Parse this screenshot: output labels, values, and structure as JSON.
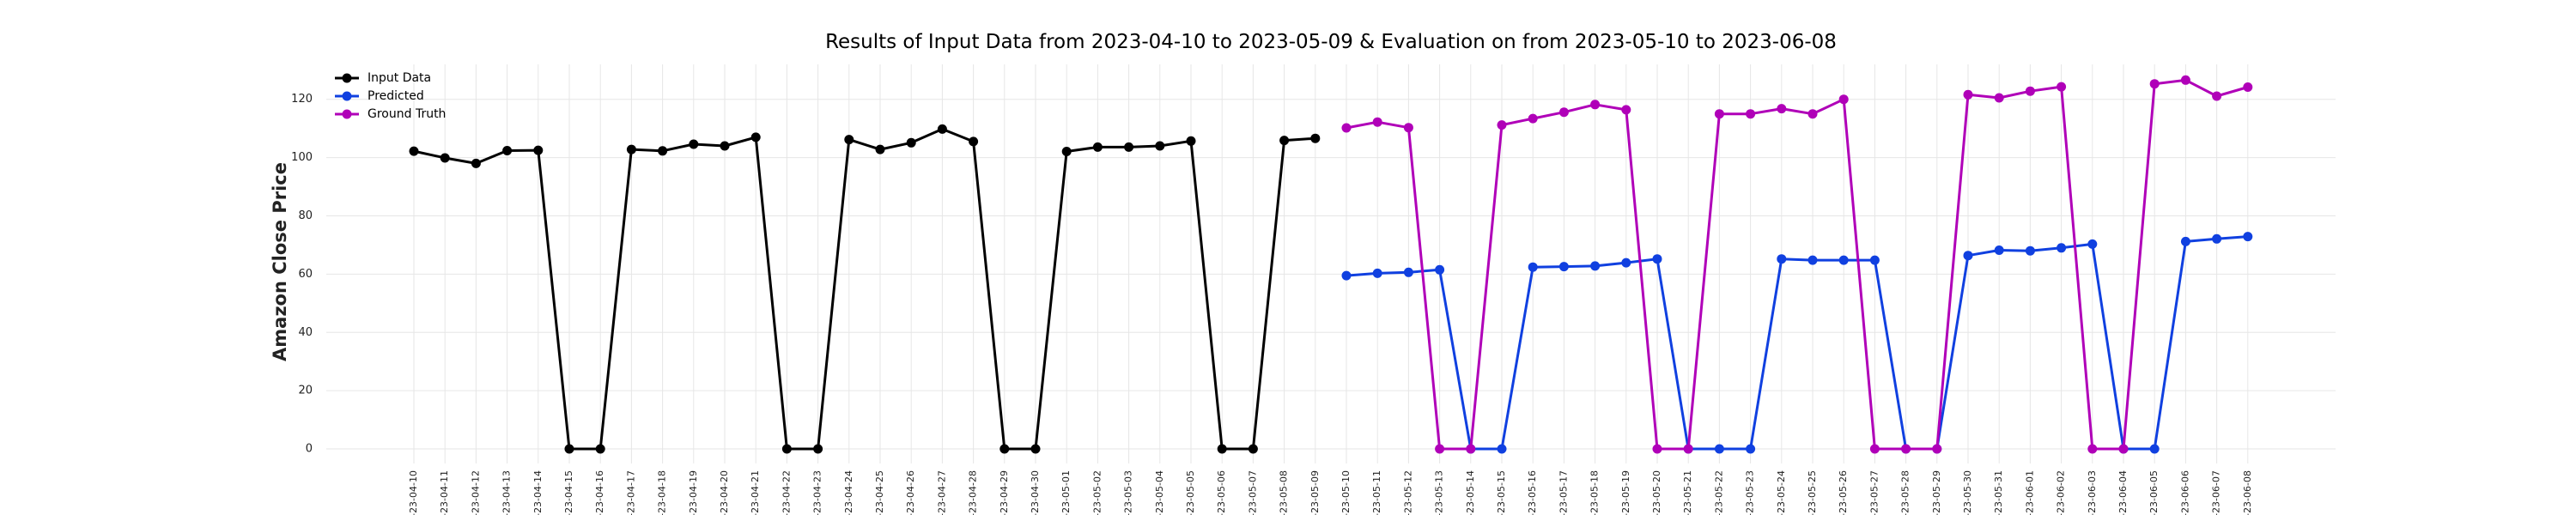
{
  "chart_data": {
    "type": "line",
    "title": "Results of Input Data from 2023-04-10 to 2023-05-09 & Evaluation on from 2023-05-10 to 2023-06-08",
    "xlabel": "",
    "ylabel": "Amazon Close Price",
    "ylim": [
      -5,
      132
    ],
    "yticks": [
      0,
      20,
      40,
      60,
      80,
      100,
      120
    ],
    "grid": true,
    "legend_position": "top-left",
    "x": [
      "2023-04-10",
      "2023-04-11",
      "2023-04-12",
      "2023-04-13",
      "2023-04-14",
      "2023-04-15",
      "2023-04-16",
      "2023-04-17",
      "2023-04-18",
      "2023-04-19",
      "2023-04-20",
      "2023-04-21",
      "2023-04-22",
      "2023-04-23",
      "2023-04-24",
      "2023-04-25",
      "2023-04-26",
      "2023-04-27",
      "2023-04-28",
      "2023-04-29",
      "2023-04-30",
      "2023-05-01",
      "2023-05-02",
      "2023-05-03",
      "2023-05-04",
      "2023-05-05",
      "2023-05-06",
      "2023-05-07",
      "2023-05-08",
      "2023-05-09",
      "2023-05-10",
      "2023-05-11",
      "2023-05-12",
      "2023-05-13",
      "2023-05-14",
      "2023-05-15",
      "2023-05-16",
      "2023-05-17",
      "2023-05-18",
      "2023-05-19",
      "2023-05-20",
      "2023-05-21",
      "2023-05-22",
      "2023-05-23",
      "2023-05-24",
      "2023-05-25",
      "2023-05-26",
      "2023-05-27",
      "2023-05-28",
      "2023-05-29",
      "2023-05-30",
      "2023-05-31",
      "2023-06-01",
      "2023-06-02",
      "2023-06-03",
      "2023-06-04",
      "2023-06-05",
      "2023-06-06",
      "2023-06-07",
      "2023-06-08"
    ],
    "tick_labels": [
      "-23-04-10",
      "-23-04-11",
      "-23-04-12",
      "-23-04-13",
      "-23-04-14",
      "-23-04-15",
      "-23-04-16",
      "-23-04-17",
      "-23-04-18",
      "-23-04-19",
      "-23-04-20",
      "-23-04-21",
      "-23-04-22",
      "-23-04-23",
      "-23-04-24",
      "-23-04-25",
      "-23-04-26",
      "-23-04-27",
      "-23-04-28",
      "-23-04-29",
      "-23-04-30",
      "-23-05-01",
      "-23-05-02",
      "-23-05-03",
      "-23-05-04",
      "-23-05-05",
      "-23-05-06",
      "-23-05-07",
      "-23-05-08",
      "-23-05-09",
      "-23-05-10",
      "-23-05-11",
      "-23-05-12",
      "-23-05-13",
      "-23-05-14",
      "-23-05-15",
      "-23-05-16",
      "-23-05-17",
      "-23-05-18",
      "-23-05-19",
      "-23-05-20",
      "-23-05-21",
      "-23-05-22",
      "-23-05-23",
      "-23-05-24",
      "-23-05-25",
      "-23-05-26",
      "-23-05-27",
      "-23-05-28",
      "-23-05-29",
      "-23-05-30",
      "-23-05-31",
      "-23-06-01",
      "-23-06-02",
      "-23-06-03",
      "-23-06-04",
      "-23-06-05",
      "-23-06-06",
      "-23-06-07",
      "-23-06-08"
    ],
    "series": [
      {
        "name": "Input Data",
        "color": "#000000",
        "x": [
          "2023-04-10",
          "2023-04-11",
          "2023-04-12",
          "2023-04-13",
          "2023-04-14",
          "2023-04-15",
          "2023-04-16",
          "2023-04-17",
          "2023-04-18",
          "2023-04-19",
          "2023-04-20",
          "2023-04-21",
          "2023-04-22",
          "2023-04-23",
          "2023-04-24",
          "2023-04-25",
          "2023-04-26",
          "2023-04-27",
          "2023-04-28",
          "2023-04-29",
          "2023-04-30",
          "2023-05-01",
          "2023-05-02",
          "2023-05-03",
          "2023-05-04",
          "2023-05-05",
          "2023-05-06",
          "2023-05-07",
          "2023-05-08",
          "2023-05-09"
        ],
        "values": [
          102.2,
          99.9,
          98.0,
          102.4,
          102.5,
          0,
          0,
          102.8,
          102.3,
          104.6,
          104.0,
          107.0,
          0,
          0,
          106.2,
          102.8,
          105.1,
          109.8,
          105.5,
          0,
          0,
          102.1,
          103.6,
          103.6,
          104.0,
          105.7,
          0,
          0,
          105.9,
          106.6
        ]
      },
      {
        "name": "Predicted",
        "color": "#1040e0",
        "x": [
          "2023-05-10",
          "2023-05-11",
          "2023-05-12",
          "2023-05-13",
          "2023-05-14",
          "2023-05-15",
          "2023-05-16",
          "2023-05-17",
          "2023-05-18",
          "2023-05-19",
          "2023-05-20",
          "2023-05-21",
          "2023-05-22",
          "2023-05-23",
          "2023-05-24",
          "2023-05-25",
          "2023-05-26",
          "2023-05-27",
          "2023-05-28",
          "2023-05-29",
          "2023-05-30",
          "2023-05-31",
          "2023-06-01",
          "2023-06-02",
          "2023-06-03",
          "2023-06-04",
          "2023-06-05",
          "2023-06-06",
          "2023-06-07",
          "2023-06-08"
        ],
        "values": [
          59.5,
          60.3,
          60.6,
          61.5,
          0,
          0,
          62.4,
          62.6,
          62.8,
          63.9,
          65.2,
          0,
          0,
          0,
          65.2,
          64.8,
          64.8,
          64.8,
          0,
          0,
          66.4,
          68.2,
          68.0,
          69.0,
          70.3,
          0,
          0,
          71.2,
          72.1,
          72.9
        ]
      },
      {
        "name": "Ground Truth",
        "color": "#b000b8",
        "x": [
          "2023-05-10",
          "2023-05-11",
          "2023-05-12",
          "2023-05-13",
          "2023-05-14",
          "2023-05-15",
          "2023-05-16",
          "2023-05-17",
          "2023-05-18",
          "2023-05-19",
          "2023-05-20",
          "2023-05-21",
          "2023-05-22",
          "2023-05-23",
          "2023-05-24",
          "2023-05-25",
          "2023-05-26",
          "2023-05-27",
          "2023-05-28",
          "2023-05-29",
          "2023-05-30",
          "2023-05-31",
          "2023-06-01",
          "2023-06-02",
          "2023-06-03",
          "2023-06-04",
          "2023-06-05",
          "2023-06-06",
          "2023-06-07",
          "2023-06-08"
        ],
        "values": [
          110.2,
          112.2,
          110.3,
          0,
          0,
          111.2,
          113.4,
          115.6,
          118.2,
          116.4,
          0,
          0,
          115.0,
          115.0,
          116.8,
          115.0,
          120.0,
          0,
          0,
          0,
          121.6,
          120.5,
          122.8,
          124.3,
          0,
          0,
          125.3,
          126.6,
          121.1,
          124.2
        ]
      }
    ]
  }
}
